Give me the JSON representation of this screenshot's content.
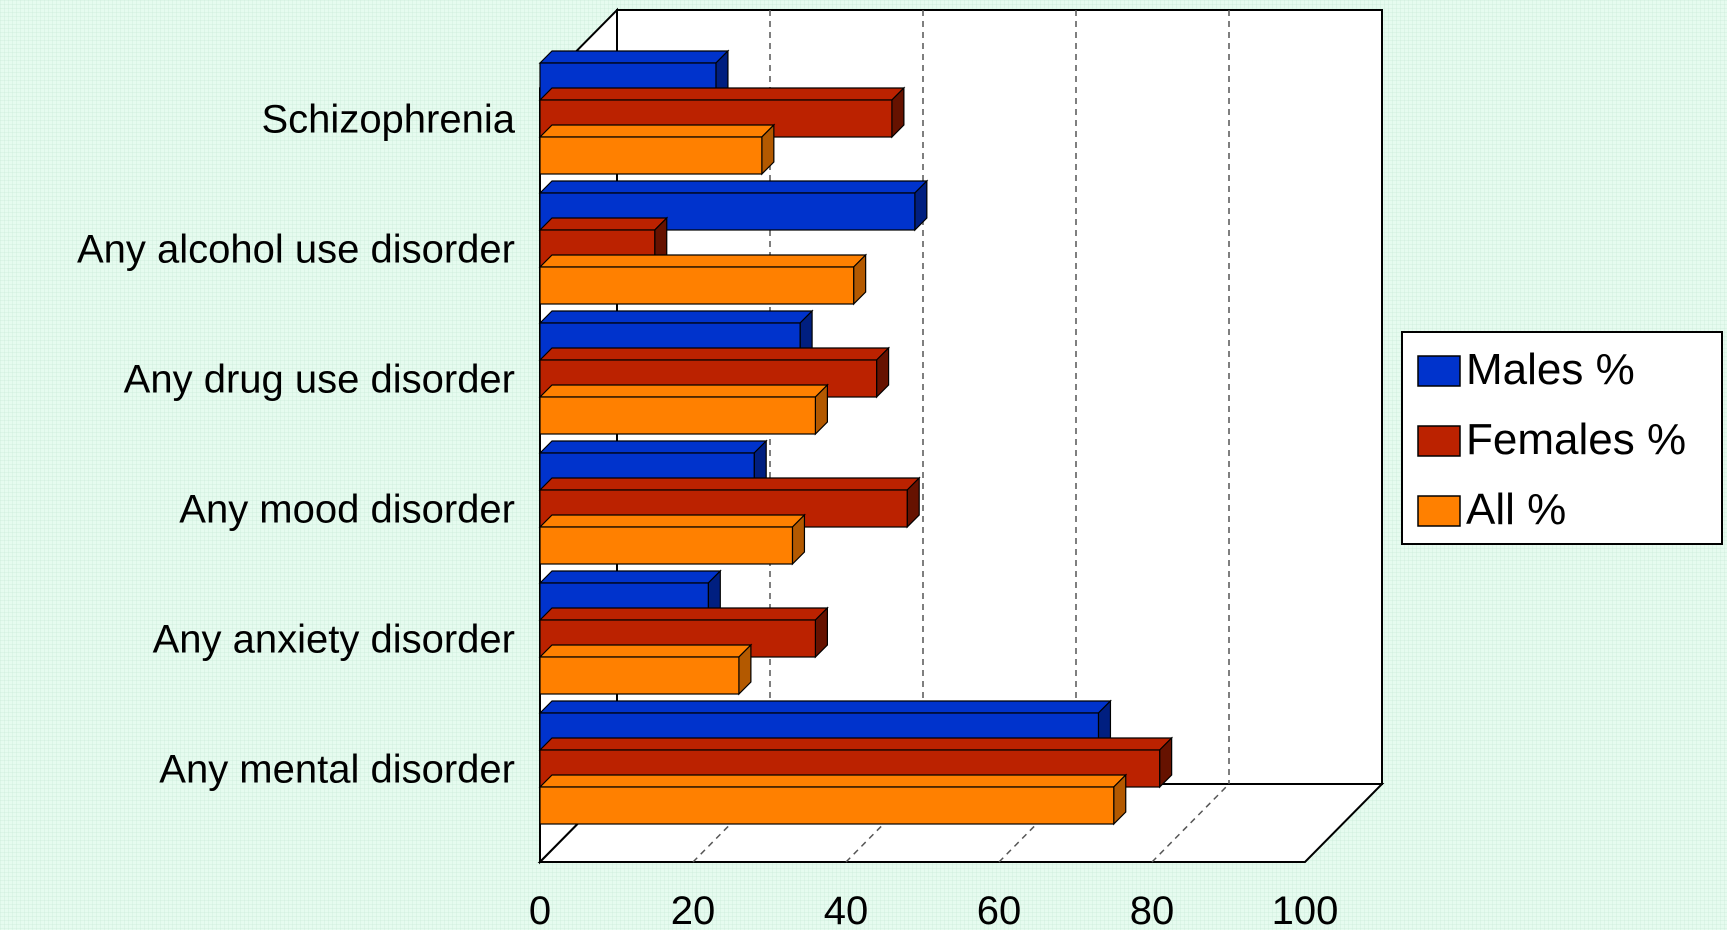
{
  "chart_data": {
    "type": "bar",
    "orientation": "horizontal",
    "three_d": true,
    "categories": [
      "Schizophrenia",
      "Any alcohol use disorder",
      "Any drug use disorder",
      "Any mood disorder",
      "Any anxiety disorder",
      "Any mental disorder"
    ],
    "series": [
      {
        "name": "Males %",
        "color": "#0033cc",
        "side": "#001f80",
        "values": [
          23,
          49,
          34,
          28,
          22,
          73
        ]
      },
      {
        "name": "Females %",
        "color": "#bb2200",
        "side": "#661200",
        "values": [
          46,
          15,
          44,
          48,
          36,
          81
        ]
      },
      {
        "name": "All %",
        "color": "#ff8000",
        "side": "#b35900",
        "values": [
          29,
          41,
          36,
          33,
          26,
          75
        ]
      }
    ],
    "xlim": [
      0,
      100
    ],
    "xticks": [
      "0",
      "20",
      "40",
      "60",
      "80",
      "100"
    ],
    "grid": true,
    "legend_position": "right"
  }
}
